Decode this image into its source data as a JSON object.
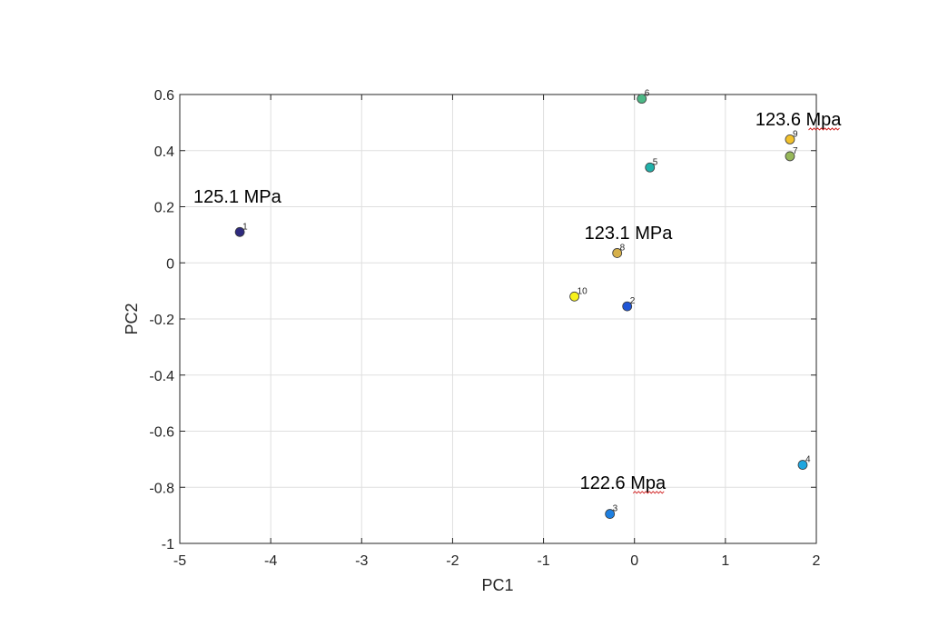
{
  "chart_data": {
    "type": "scatter",
    "xlabel": "PC1",
    "ylabel": "PC2",
    "xlim": [
      -5,
      2
    ],
    "ylim": [
      -1,
      0.6
    ],
    "xticks": [
      "-5",
      "-4",
      "-3",
      "-2",
      "-1",
      "0",
      "1",
      "2"
    ],
    "yticks": [
      "-1",
      "-0.8",
      "-0.6",
      "-0.4",
      "-0.2",
      "0",
      "0.2",
      "0.4",
      "0.6"
    ],
    "grid": true,
    "points": [
      {
        "label": "1",
        "x": -4.34,
        "y": 0.11,
        "color": "#2e2a7e"
      },
      {
        "label": "2",
        "x": -0.08,
        "y": -0.155,
        "color": "#1f55d6"
      },
      {
        "label": "3",
        "x": -0.27,
        "y": -0.895,
        "color": "#1e7fe0"
      },
      {
        "label": "4",
        "x": 1.85,
        "y": -0.72,
        "color": "#1fa6df"
      },
      {
        "label": "5",
        "x": 0.17,
        "y": 0.34,
        "color": "#21b1aa"
      },
      {
        "label": "6",
        "x": 0.08,
        "y": 0.585,
        "color": "#4cb886"
      },
      {
        "label": "7",
        "x": 1.71,
        "y": 0.38,
        "color": "#97b85a"
      },
      {
        "label": "8",
        "x": -0.19,
        "y": 0.035,
        "color": "#d6b04a"
      },
      {
        "label": "9",
        "x": 1.71,
        "y": 0.44,
        "color": "#f2c12c"
      },
      {
        "label": "10",
        "x": -0.66,
        "y": -0.12,
        "color": "#f7f21a"
      }
    ],
    "annotations": [
      {
        "text": "125.1 MPa",
        "x": -4.85,
        "y": 0.215,
        "spellcheck": false
      },
      {
        "text": "123.6 Mpa",
        "x": 1.33,
        "y": 0.49,
        "spellcheck": true
      },
      {
        "text": "123.1 MPa",
        "x": -0.55,
        "y": 0.085,
        "spellcheck": false
      },
      {
        "text": "122.6 Mpa",
        "x": -0.6,
        "y": -0.805,
        "spellcheck": true
      }
    ]
  }
}
